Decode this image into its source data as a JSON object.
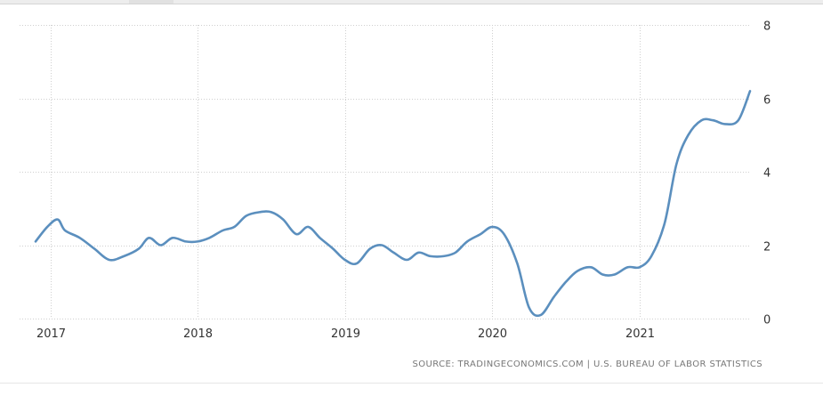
{
  "chart_data": {
    "type": "line",
    "title": "",
    "xlabel": "",
    "ylabel": "",
    "xlim": [
      2016.9,
      2021.75
    ],
    "ylim": [
      0,
      8
    ],
    "y_ticks": [
      0,
      2,
      4,
      6,
      8
    ],
    "x_ticks": [
      2017,
      2018,
      2019,
      2020,
      2021
    ],
    "x_tick_labels": [
      "2017",
      "2018",
      "2019",
      "2020",
      "2021"
    ],
    "grid": true,
    "legend": "none",
    "y_axis_side": "right",
    "line_color": "#5b8fbe",
    "series": [
      {
        "x": [
          2016.9,
          2016.98,
          2017.05,
          2017.1,
          2017.2,
          2017.3,
          2017.4,
          2017.5,
          2017.6,
          2017.67,
          2017.75,
          2017.83,
          2017.92,
          2018.0,
          2018.08,
          2018.17,
          2018.25,
          2018.33,
          2018.42,
          2018.5,
          2018.58,
          2018.67,
          2018.75,
          2018.83,
          2018.92,
          2019.0,
          2019.08,
          2019.17,
          2019.25,
          2019.33,
          2019.42,
          2019.5,
          2019.58,
          2019.67,
          2019.75,
          2019.83,
          2019.92,
          2020.0,
          2020.08,
          2020.17,
          2020.25,
          2020.33,
          2020.42,
          2020.5,
          2020.58,
          2020.67,
          2020.75,
          2020.83,
          2020.92,
          2021.0,
          2021.08,
          2021.17,
          2021.25,
          2021.33,
          2021.42,
          2021.5,
          2021.58,
          2021.67,
          2021.75
        ],
        "values": [
          2.1,
          2.5,
          2.7,
          2.4,
          2.2,
          1.9,
          1.6,
          1.7,
          1.9,
          2.2,
          2.0,
          2.2,
          2.1,
          2.1,
          2.2,
          2.4,
          2.5,
          2.8,
          2.9,
          2.9,
          2.7,
          2.3,
          2.5,
          2.2,
          1.9,
          1.6,
          1.5,
          1.9,
          2.0,
          1.8,
          1.6,
          1.8,
          1.7,
          1.7,
          1.8,
          2.1,
          2.3,
          2.5,
          2.3,
          1.5,
          0.3,
          0.1,
          0.6,
          1.0,
          1.3,
          1.4,
          1.2,
          1.2,
          1.4,
          1.4,
          1.7,
          2.6,
          4.2,
          5.0,
          5.4,
          5.4,
          5.3,
          5.4,
          6.2
        ]
      }
    ]
  },
  "source_text": "SOURCE: TRADINGECONOMICS.COM | U.S. BUREAU OF LABOR STATISTICS"
}
